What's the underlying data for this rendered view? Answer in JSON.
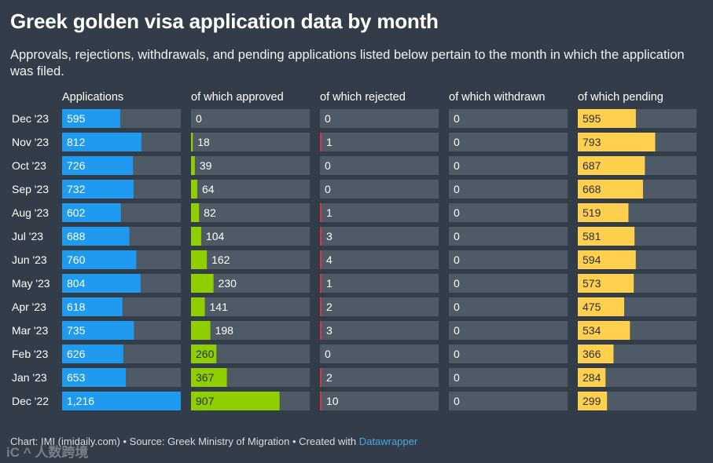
{
  "title": "Greek golden visa application data by month",
  "subtitle": "Approvals, rejections, withdrawals, and pending applications listed below pertain to the month in which the application was filed.",
  "footer": {
    "text": "Chart: IMI (imidaily.com) • Source: Greek Ministry of Migration • Created with ",
    "link": "Datawrapper"
  },
  "watermark": "iC ^ 人数跨境",
  "chart_data": {
    "type": "table",
    "categories": [
      "Dec '23",
      "Nov '23",
      "Oct '23",
      "Sep '23",
      "Aug '23",
      "Jul '23",
      "Jun '23",
      "May '23",
      "Apr '23",
      "Mar '23",
      "Feb '23",
      "Jan '23",
      "Dec '22"
    ],
    "max_value": 1216,
    "series": [
      {
        "name": "Applications",
        "color": "#1e9bf0",
        "values": [
          595,
          812,
          726,
          732,
          602,
          688,
          760,
          804,
          618,
          735,
          626,
          653,
          1216
        ],
        "labels": [
          "595",
          "812",
          "726",
          "732",
          "602",
          "688",
          "760",
          "804",
          "618",
          "735",
          "626",
          "653",
          "1,216"
        ]
      },
      {
        "name": "of which approved",
        "color": "#8fcf00",
        "values": [
          0,
          18,
          39,
          64,
          82,
          104,
          162,
          230,
          141,
          198,
          260,
          367,
          907
        ],
        "labels": [
          "0",
          "18",
          "39",
          "64",
          "82",
          "104",
          "162",
          "230",
          "141",
          "198",
          "260",
          "367",
          "907"
        ]
      },
      {
        "name": "of which rejected",
        "color": "#e0304a",
        "values": [
          0,
          1,
          0,
          0,
          1,
          3,
          4,
          1,
          2,
          3,
          0,
          2,
          10
        ],
        "labels": [
          "0",
          "1",
          "0",
          "0",
          "1",
          "3",
          "4",
          "1",
          "2",
          "3",
          "0",
          "2",
          "10"
        ]
      },
      {
        "name": "of which withdrawn",
        "color": "#a0a8b2",
        "values": [
          0,
          0,
          0,
          0,
          0,
          0,
          0,
          0,
          0,
          0,
          0,
          0,
          0
        ],
        "labels": [
          "0",
          "0",
          "0",
          "0",
          "0",
          "0",
          "0",
          "0",
          "0",
          "0",
          "0",
          "0",
          "0"
        ]
      },
      {
        "name": "of which pending",
        "color": "#ffd04d",
        "values": [
          595,
          793,
          687,
          668,
          519,
          581,
          594,
          573,
          475,
          534,
          366,
          284,
          299
        ],
        "labels": [
          "595",
          "793",
          "687",
          "668",
          "519",
          "581",
          "594",
          "573",
          "475",
          "534",
          "366",
          "284",
          "299"
        ]
      }
    ],
    "track_color": "#4f5a67"
  }
}
